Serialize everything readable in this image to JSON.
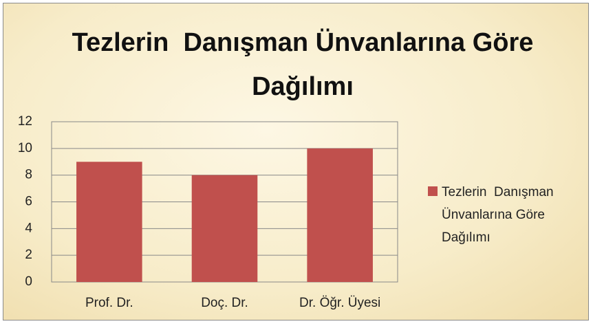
{
  "chart_data": {
    "type": "bar",
    "title": "Tezlerin  Danışman Ünvanlarına Göre Dağılımı",
    "categories": [
      "Prof. Dr.",
      "Doç. Dr.",
      "Dr. Öğr. Üyesi"
    ],
    "series": [
      {
        "name": "Tezlerin  Danışman Ünvanlarına Göre Dağılımı",
        "color": "#c0504d",
        "values": [
          9,
          8,
          10
        ]
      }
    ],
    "ylim": [
      0,
      12
    ],
    "yticks": [
      0,
      2,
      4,
      6,
      8,
      10,
      12
    ],
    "grid": true,
    "legend": "right"
  }
}
